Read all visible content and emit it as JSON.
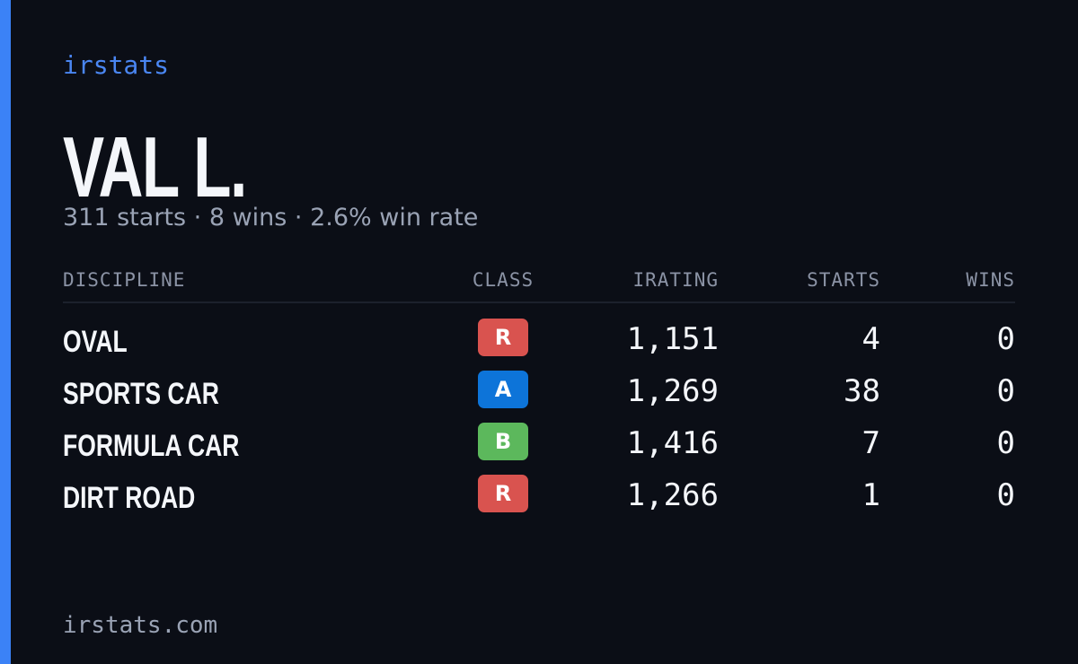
{
  "brand": "irstats",
  "driver": {
    "name": "VAL L.",
    "summary": "311 starts · 8 wins · 2.6% win rate"
  },
  "table": {
    "headers": [
      "DISCIPLINE",
      "CLASS",
      "IRATING",
      "STARTS",
      "WINS"
    ],
    "rows": [
      {
        "discipline": "OVAL",
        "class": "R",
        "class_color": "#d9534f",
        "irating": "1,151",
        "starts": 4,
        "wins": 0
      },
      {
        "discipline": "SPORTS CAR",
        "class": "A",
        "class_color": "#0d74d9",
        "irating": "1,269",
        "starts": 38,
        "wins": 0
      },
      {
        "discipline": "FORMULA CAR",
        "class": "B",
        "class_color": "#5cb85c",
        "irating": "1,416",
        "starts": 7,
        "wins": 0
      },
      {
        "discipline": "DIRT ROAD",
        "class": "R",
        "class_color": "#d9534f",
        "irating": "1,266",
        "starts": 1,
        "wins": 0
      }
    ]
  },
  "footer": "irstats.com"
}
